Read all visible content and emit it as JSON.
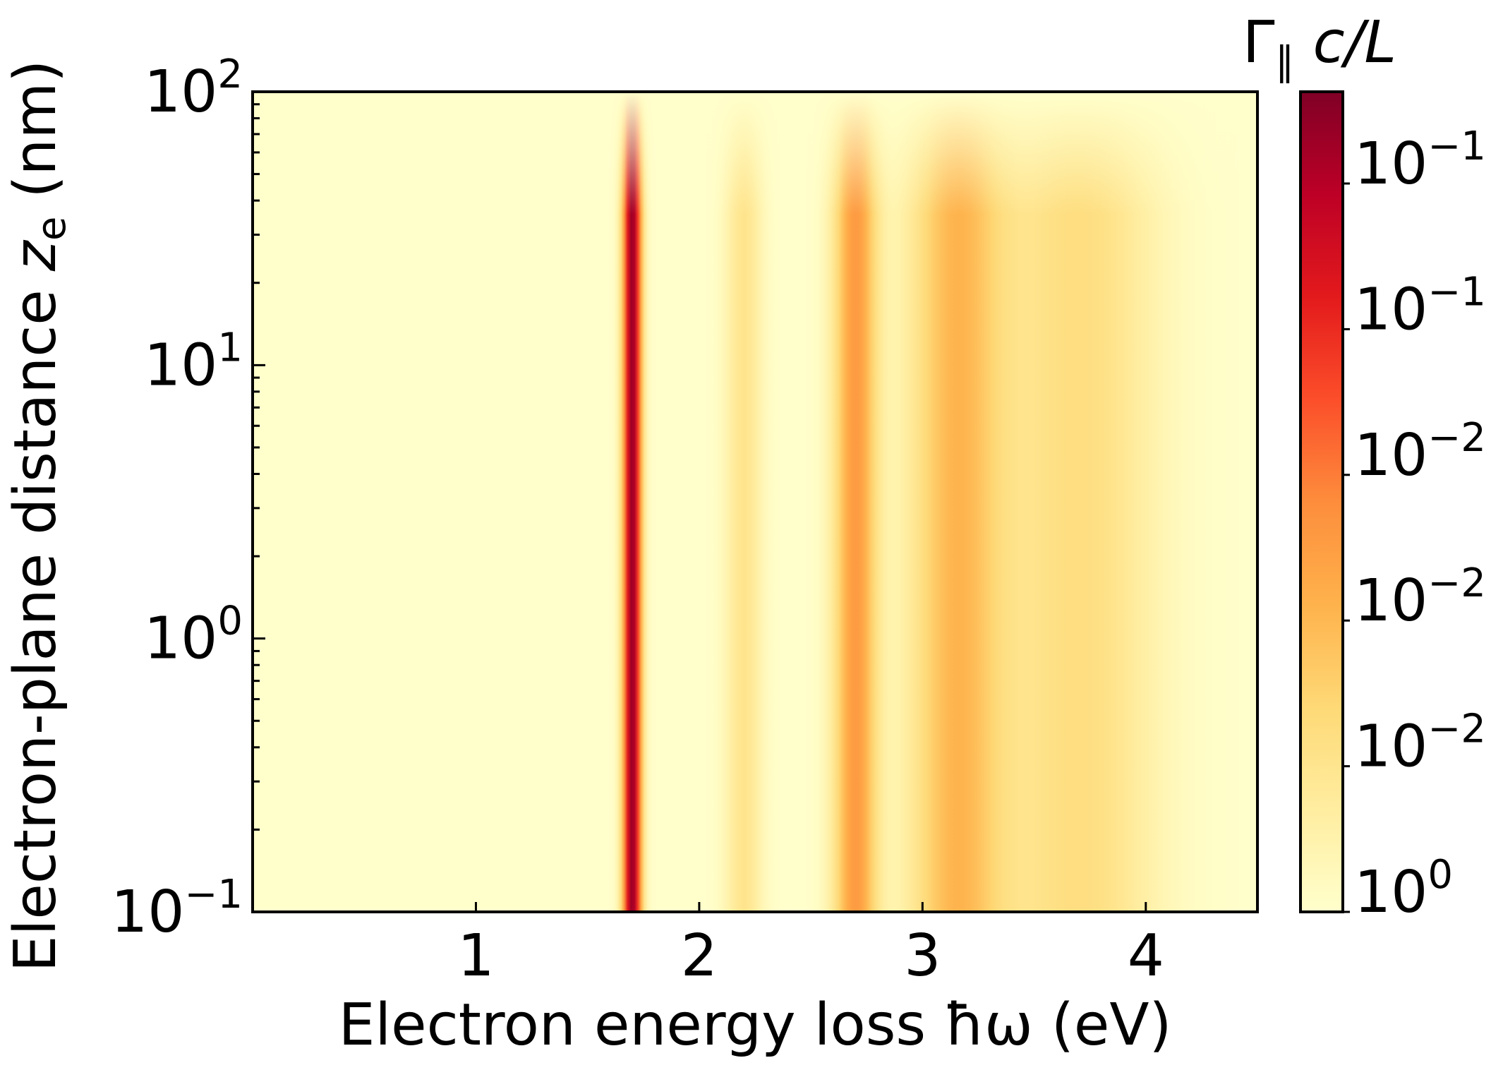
{
  "chart_data": {
    "type": "heatmap",
    "title": "",
    "xlabel": "Electron energy loss ħω (eV)",
    "ylabel": {
      "main": "Electron-plane distance ",
      "var": "z",
      "sub": "e",
      "unit": " (nm)"
    },
    "xlim": [
      0,
      4.5
    ],
    "ylim": [
      0.1,
      100
    ],
    "yscale": "log",
    "x_ticks": [
      {
        "value": 1,
        "label": "1"
      },
      {
        "value": 2,
        "label": "2"
      },
      {
        "value": 3,
        "label": "3"
      },
      {
        "value": 4,
        "label": "4"
      }
    ],
    "y_ticks": [
      {
        "value": 0.1,
        "base": "10",
        "exp": "−1"
      },
      {
        "value": 1,
        "base": "10",
        "exp": "0"
      },
      {
        "value": 10,
        "base": "10",
        "exp": "1"
      },
      {
        "value": 100,
        "base": "10",
        "exp": "2"
      }
    ],
    "peaks_ev": [
      {
        "center": 1.7,
        "strength": 0.95,
        "width": 0.03
      },
      {
        "center": 2.2,
        "strength": 0.18,
        "width": 0.06
      },
      {
        "center": 2.7,
        "strength": 0.45,
        "width": 0.07
      },
      {
        "center": 3.15,
        "strength": 0.35,
        "width": 0.15
      },
      {
        "center": 3.7,
        "strength": 0.22,
        "width": 0.25
      }
    ],
    "colorbar": {
      "label_main": "Γ",
      "label_sub": "∥",
      "label_rest": " c/L",
      "colormap": "YlOrRd",
      "colors": [
        "#ffffcc",
        "#ffeda0",
        "#fed976",
        "#feb24c",
        "#fd8d3c",
        "#fc4e2a",
        "#e31a1c",
        "#bd0026",
        "#800026"
      ],
      "ticks": [
        {
          "base": "10",
          "exp": "0"
        },
        {
          "base": "10",
          "exp": "−2"
        },
        {
          "base": "10",
          "exp": "−2"
        },
        {
          "base": "10",
          "exp": "−2"
        },
        {
          "base": "10",
          "exp": "−1"
        },
        {
          "base": "10",
          "exp": "−1"
        }
      ]
    }
  }
}
